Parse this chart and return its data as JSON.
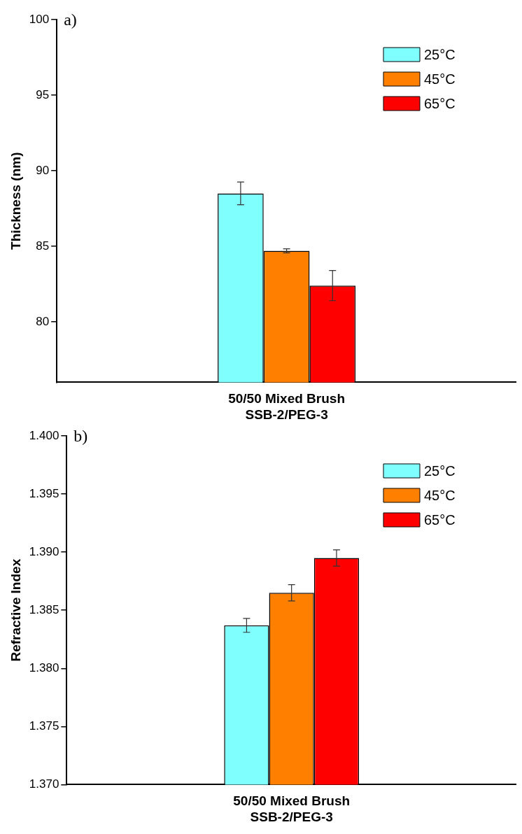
{
  "chart_data": [
    {
      "type": "bar",
      "annotations": [
        "a)"
      ],
      "ylabel": "Thickness (nm)",
      "categories": [
        "50/50 Mixed Brush\nSSB-2/PEG-3"
      ],
      "ylim": [
        76,
        100
      ],
      "yticks": [
        80,
        85,
        90,
        95,
        100
      ],
      "legend": "top right",
      "grid": false,
      "series": [
        {
          "name": "25°C",
          "color": "#80ffff",
          "values": [
            88.5
          ],
          "errors": [
            0.75
          ]
        },
        {
          "name": "45°C",
          "color": "#ff8000",
          "values": [
            84.7
          ],
          "errors": [
            0.13
          ]
        },
        {
          "name": "65°C",
          "color": "#ff0000",
          "values": [
            82.4
          ],
          "errors": [
            1.0
          ]
        }
      ]
    },
    {
      "type": "bar",
      "annotations": [
        "b)"
      ],
      "ylabel": "Refractive Index",
      "categories": [
        "50/50 Mixed Brush\nSSB-2/PEG-3"
      ],
      "ylim": [
        1.37,
        1.4
      ],
      "yticks": [
        {
          "value": 1.37,
          "label": "1.370"
        },
        {
          "value": 1.375,
          "label": "1.375"
        },
        {
          "value": 1.38,
          "label": "1.380"
        },
        {
          "value": 1.385,
          "label": "1.385"
        },
        {
          "value": 1.39,
          "label": "1.390"
        },
        {
          "value": 1.395,
          "label": "1.395"
        },
        {
          "value": 1.4,
          "label": "1.400"
        }
      ],
      "legend": "top right",
      "grid": false,
      "series": [
        {
          "name": "25°C",
          "color": "#80ffff",
          "values": [
            1.3837
          ],
          "errors": [
            0.0006
          ]
        },
        {
          "name": "45°C",
          "color": "#ff8000",
          "values": [
            1.3865
          ],
          "errors": [
            0.0007
          ]
        },
        {
          "name": "65°C",
          "color": "#ff0000",
          "values": [
            1.3895
          ],
          "errors": [
            0.0007
          ]
        }
      ]
    }
  ]
}
